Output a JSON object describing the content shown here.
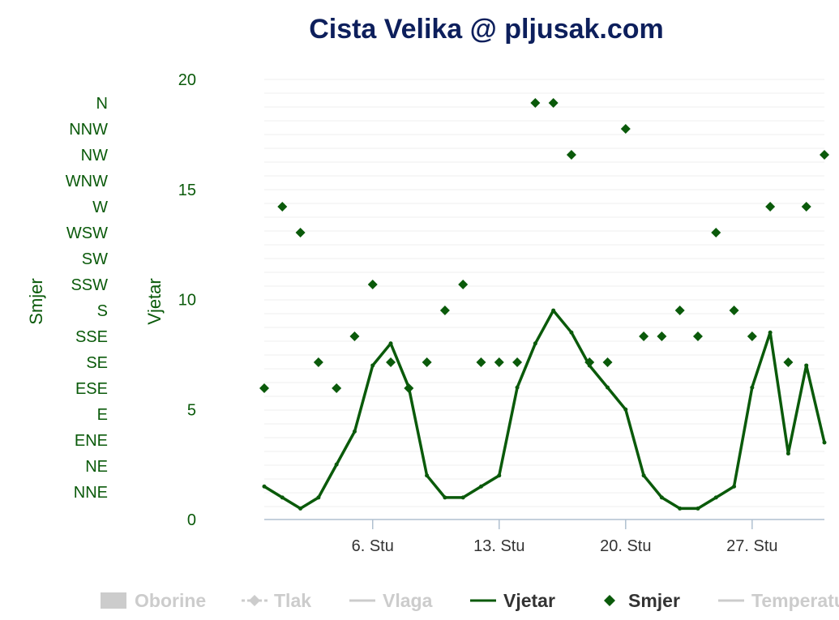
{
  "chart_data": {
    "type": "line",
    "title": "Cista Velika @ pljusak.com",
    "x_ticks": [
      "6. Stu",
      "13. Stu",
      "20. Stu",
      "27. Stu"
    ],
    "x_range": [
      "30. Lis",
      "31. Stu"
    ],
    "left_axis": {
      "label": "Smjer",
      "categories": [
        "NNE",
        "NE",
        "ENE",
        "E",
        "ESE",
        "SE",
        "SSE",
        "S",
        "SSW",
        "SW",
        "WSW",
        "W",
        "WNW",
        "NW",
        "NNW",
        "N"
      ]
    },
    "right_axis": {
      "label": "Vjetar",
      "ticks": [
        "0",
        "5",
        "10",
        "15",
        "20"
      ],
      "ylim": [
        0,
        20
      ]
    },
    "grid": true,
    "legend_position": "bottom",
    "series": [
      {
        "name": "Oborine",
        "kind": "bar",
        "visible": false,
        "color": "#cccccc"
      },
      {
        "name": "Tlak",
        "kind": "dashed-line-marker",
        "visible": false,
        "color": "#cccccc"
      },
      {
        "name": "Vlaga",
        "kind": "line",
        "visible": false,
        "color": "#cccccc"
      },
      {
        "name": "Vjetar",
        "kind": "line",
        "visible": true,
        "color": "#0a5a0a",
        "x_days": [
          0.0,
          1.0,
          2.0,
          3.0,
          4.0,
          5.0,
          6.0,
          7.0,
          8.0,
          9.0,
          10.0,
          11.0,
          12.0,
          13.0,
          14.0,
          15.0,
          16.0,
          17.0,
          18.0,
          19.0,
          20.0,
          21.0,
          22.0,
          23.0,
          24.0,
          25.0,
          26.0,
          27.0,
          28.0,
          29.0,
          30.0,
          31.0
        ],
        "values": [
          1.5,
          1.0,
          0.5,
          1.0,
          2.5,
          4.0,
          7.0,
          8.0,
          6.0,
          2.0,
          1.0,
          1.0,
          1.5,
          2.0,
          6.0,
          8.0,
          9.5,
          8.5,
          7.0,
          6.0,
          5.0,
          2.0,
          1.0,
          0.5,
          0.5,
          1.0,
          1.5,
          6.0,
          8.5,
          3.0,
          7.0,
          3.5
        ]
      },
      {
        "name": "Smjer",
        "kind": "scatter",
        "visible": true,
        "color": "#0a5a0a",
        "x_days": [
          0.0,
          1.0,
          2.0,
          3.0,
          4.0,
          5.0,
          6.0,
          7.0,
          8.0,
          9.0,
          10.0,
          11.0,
          12.0,
          13.0,
          14.0,
          15.0,
          16.0,
          17.0,
          18.0,
          19.0,
          20.0,
          21.0,
          22.0,
          23.0,
          24.0,
          25.0,
          26.0,
          27.0,
          28.0,
          29.0,
          30.0,
          31.0
        ],
        "values": [
          "ESE",
          "W",
          "WSW",
          "SE",
          "ESE",
          "SSE",
          "SSW",
          "SE",
          "ESE",
          "SE",
          "S",
          "SSW",
          "SE",
          "SE",
          "SE",
          "N",
          "N",
          "NW",
          "SE",
          "SE",
          "NNW",
          "SSE",
          "SSE",
          "S",
          "SSE",
          "WSW",
          "S",
          "SSE",
          "W",
          "SE",
          "W",
          "NW"
        ]
      },
      {
        "name": "Temperatura",
        "kind": "line",
        "visible": false,
        "color": "#cccccc"
      }
    ]
  },
  "legend": {
    "oborine": "Oborine",
    "tlak": "Tlak",
    "vlaga": "Vlaga",
    "vjetar": "Vjetar",
    "smjer": "Smjer",
    "temperatura": "Temperatura"
  }
}
